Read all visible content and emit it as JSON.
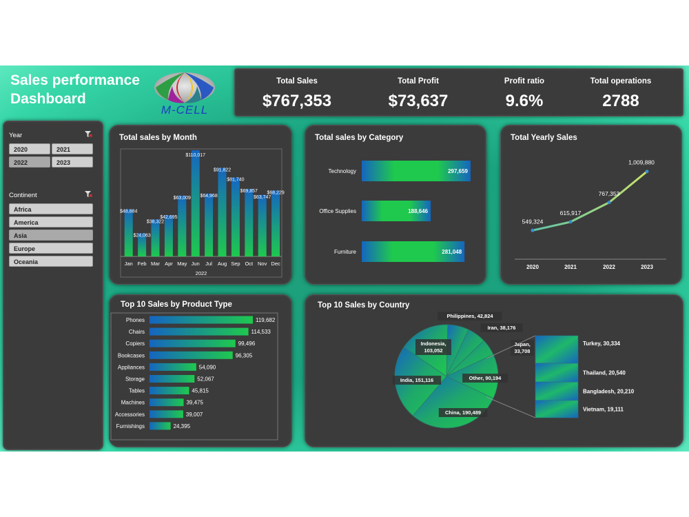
{
  "header": {
    "title_line1": "Sales performance",
    "title_line2": "Dashboard",
    "logo_text": "M-CELL"
  },
  "kpis": [
    {
      "label": "Total Sales",
      "value": "$767,353"
    },
    {
      "label": "Total Profit",
      "value": "$73,637"
    },
    {
      "label": "Profit ratio",
      "value": "9.6%"
    },
    {
      "label": "Total operations",
      "value": "2788"
    }
  ],
  "slicers": {
    "year": {
      "title": "Year",
      "items": [
        "2020",
        "2021",
        "2022",
        "2023"
      ]
    },
    "continent": {
      "title": "Continent",
      "items": [
        "Africa",
        "America",
        "Asia",
        "Europe",
        "Oceania"
      ]
    }
  },
  "colors": {
    "accent_green": "#1fc94e",
    "accent_blue": "#1565c0",
    "panel": "#3b3b3b",
    "line": "#8fd6a0"
  },
  "chart_data": [
    {
      "id": "monthly",
      "type": "bar",
      "title": "Total sales by Month",
      "categories": [
        "Jan",
        "Feb",
        "Mar",
        "Apr",
        "May",
        "Jun",
        "Jul",
        "Aug",
        "Sep",
        "Oct",
        "Nov",
        "Dec"
      ],
      "values": [
        48884,
        24063,
        38322,
        42695,
        63009,
        110017,
        64968,
        91822,
        81740,
        69857,
        63747,
        68229
      ],
      "labels": [
        "$48,884",
        "$24,063",
        "$38,322",
        "$42,695",
        "$63,009",
        "$110,017",
        "$64,968",
        "$91,822",
        "$81,740",
        "$69,857",
        "$63,747",
        "$68,229"
      ],
      "xlabel": "2022",
      "ylim": [
        0,
        110017
      ]
    },
    {
      "id": "category",
      "type": "bar",
      "orientation": "horizontal",
      "title": "Total sales by Category",
      "categories": [
        "Technology",
        "Office Supplies",
        "Furniture"
      ],
      "values": [
        297659,
        188646,
        281048
      ],
      "labels": [
        "297,659",
        "188,646",
        "281,048"
      ]
    },
    {
      "id": "yearly",
      "type": "line",
      "title": "Total Yearly Sales",
      "x": [
        "2020",
        "2021",
        "2022",
        "2023"
      ],
      "values": [
        549324,
        615917,
        767353,
        1009880
      ],
      "labels": [
        "549,324",
        "615,917",
        "767,353",
        "1,009,880"
      ]
    },
    {
      "id": "product",
      "type": "bar",
      "orientation": "horizontal",
      "title": "Top 10 Sales by Product Type",
      "categories": [
        "Phones",
        "Chairs",
        "Copiers",
        "Bookcases",
        "Appliances",
        "Storage",
        "Tables",
        "Machines",
        "Accessories",
        "Furnishings"
      ],
      "values": [
        119682,
        114533,
        99496,
        96305,
        54090,
        52067,
        45815,
        39475,
        39007,
        24395
      ],
      "labels": [
        "119,682",
        "114,533",
        "99,496",
        "96,305",
        "54,090",
        "52,067",
        "45,815",
        "39,475",
        "39,007",
        "24,395"
      ]
    },
    {
      "id": "country",
      "type": "pie",
      "title": "Top 10 Sales by Country",
      "categories": [
        "China",
        "India",
        "Indonesia",
        "Philippines",
        "Iran",
        "Japan",
        "Other",
        "Turkey",
        "Thailand",
        "Bangladesh",
        "Vietnam"
      ],
      "values": [
        190489,
        151116,
        103052,
        42824,
        38176,
        33708,
        90194,
        30334,
        20540,
        20210,
        19111
      ],
      "pie_slices": [
        {
          "name": "China",
          "label": "China, 190,489",
          "value": 190489
        },
        {
          "name": "India",
          "label": "India, 151,116",
          "value": 151116
        },
        {
          "name": "Indonesia",
          "label": "Indonesia, 103,052",
          "value": 103052
        },
        {
          "name": "Philippines",
          "label": "Philippines, 42,824",
          "value": 42824
        },
        {
          "name": "Iran",
          "label": "Iran, 38,176",
          "value": 38176
        },
        {
          "name": "Japan",
          "label": "Japan, 33,708",
          "value": 33708
        },
        {
          "name": "Other",
          "label": "Other, 90,194",
          "value": 90194
        }
      ],
      "other_breakdown": [
        {
          "name": "Turkey",
          "label": "Turkey, 30,334",
          "value": 30334
        },
        {
          "name": "Thailand",
          "label": "Thailand, 20,540",
          "value": 20540
        },
        {
          "name": "Bangladesh",
          "label": "Bangladesh, 20,210",
          "value": 20210
        },
        {
          "name": "Vietnam",
          "label": "Vietnam, 19,111",
          "value": 19111
        }
      ]
    }
  ]
}
